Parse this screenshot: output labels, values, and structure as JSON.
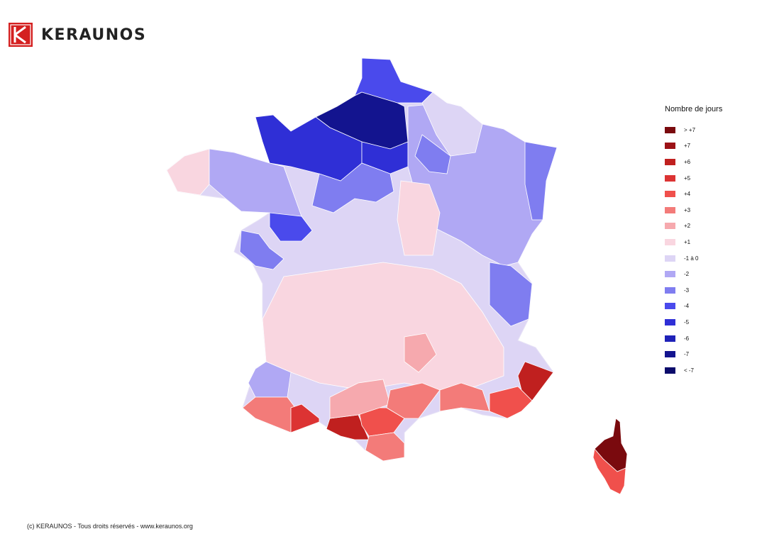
{
  "brand": {
    "name": "KERAUNOS",
    "color": "#d42020"
  },
  "legend": {
    "title": "Nombre de jours",
    "items": [
      {
        "label": "> +7",
        "color": "#7a0a0e"
      },
      {
        "label": "+7",
        "color": "#9c1216"
      },
      {
        "label": "+6",
        "color": "#c0201f"
      },
      {
        "label": "+5",
        "color": "#dc3333"
      },
      {
        "label": "+4",
        "color": "#f0504c"
      },
      {
        "label": "+3",
        "color": "#f37b79"
      },
      {
        "label": "+2",
        "color": "#f6a9ae"
      },
      {
        "label": "+1",
        "color": "#f9d6e0"
      },
      {
        "label": "-1 à 0",
        "color": "#ddd5f5"
      },
      {
        "label": "-2",
        "color": "#b0a8f4"
      },
      {
        "label": "-3",
        "color": "#7f7df0"
      },
      {
        "label": "-4",
        "color": "#4a4aec"
      },
      {
        "label": "-5",
        "color": "#2f2fd6"
      },
      {
        "label": "-6",
        "color": "#1f22b8"
      },
      {
        "label": "-7",
        "color": "#13148f"
      },
      {
        "label": "< -7",
        "color": "#0b0b6b"
      }
    ]
  },
  "footer": {
    "text": "(c) KERAUNOS - Tous droits réservés - www.keraunos.org"
  },
  "map": {
    "zones": [
      {
        "class": "-4",
        "color": "#4a4aec"
      },
      {
        "class": "-7",
        "color": "#13148f"
      },
      {
        "class": "-5",
        "color": "#2f2fd6"
      },
      {
        "class": "-3",
        "color": "#7f7df0"
      },
      {
        "class": "-2",
        "color": "#b0a8f4"
      },
      {
        "class": "-1 à 0",
        "color": "#ddd5f5"
      },
      {
        "class": "+1",
        "color": "#f9d6e0"
      },
      {
        "class": "+3",
        "color": "#f37b79"
      },
      {
        "class": "+5",
        "color": "#dc3333"
      },
      {
        "class": "+6",
        "color": "#c0201f"
      },
      {
        "class": "> +7",
        "color": "#7a0a0e"
      }
    ]
  }
}
